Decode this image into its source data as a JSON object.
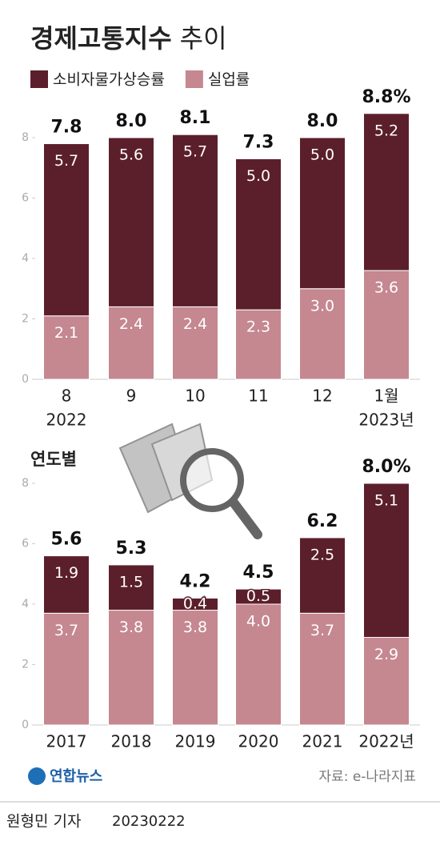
{
  "title": "경제고통지수",
  "title_suffix": "추이",
  "chart_data": [
    {
      "type": "stacked-bar",
      "categories": [
        "8",
        "9",
        "10",
        "11",
        "12",
        "1월"
      ],
      "year_labels": [
        "2022",
        null,
        null,
        null,
        null,
        "2023년"
      ],
      "series": [
        {
          "name": "소비자물가상승률",
          "color": "#5b1f2b",
          "values": [
            5.7,
            5.6,
            5.7,
            5.0,
            5.0,
            5.2
          ],
          "value_labels": [
            "5.7",
            "5.6",
            "5.7",
            "5.0",
            "5.0",
            "5.2"
          ]
        },
        {
          "name": "실업률",
          "color": "#c58790",
          "values": [
            2.1,
            2.4,
            2.4,
            2.3,
            3.0,
            3.6
          ],
          "value_labels": [
            "2.1",
            "2.4",
            "2.4",
            "2.3",
            "3.0",
            "3.6"
          ]
        }
      ],
      "totals": [
        7.8,
        8.0,
        8.1,
        7.3,
        8.0,
        8.8
      ],
      "total_labels": [
        "7.8",
        "8.0",
        "8.1",
        "7.3",
        "8.0",
        "8.8%"
      ],
      "ylim": [
        0,
        8
      ],
      "yticks": [
        0,
        2,
        4,
        6,
        8
      ],
      "grid": false
    },
    {
      "type": "stacked-bar",
      "subtitle": "연도별",
      "categories": [
        "2017",
        "2018",
        "2019",
        "2020",
        "2021",
        "2022년"
      ],
      "series": [
        {
          "color": "#5b1f2b",
          "values": [
            1.9,
            1.5,
            0.4,
            0.5,
            2.5,
            5.1
          ],
          "value_labels": [
            "1.9",
            "1.5",
            "0.4",
            "0.5",
            "2.5",
            "5.1"
          ]
        },
        {
          "color": "#c58790",
          "values": [
            3.7,
            3.8,
            3.8,
            4.0,
            3.7,
            2.9
          ],
          "value_labels": [
            "3.7",
            "3.8",
            "3.8",
            "4.0",
            "3.7",
            "2.9"
          ]
        }
      ],
      "totals": [
        5.6,
        5.3,
        4.2,
        4.5,
        6.2,
        8.0
      ],
      "total_labels": [
        "5.6",
        "5.3",
        "4.2",
        "4.5",
        "6.2",
        "8.0%"
      ],
      "ylim": [
        0,
        8
      ],
      "yticks": [
        0,
        2,
        4,
        6,
        8
      ],
      "grid": false
    }
  ],
  "logo": "연합뉴스",
  "source": "자료: e-나라지표",
  "byline": "원형민 기자",
  "date": "20230222"
}
